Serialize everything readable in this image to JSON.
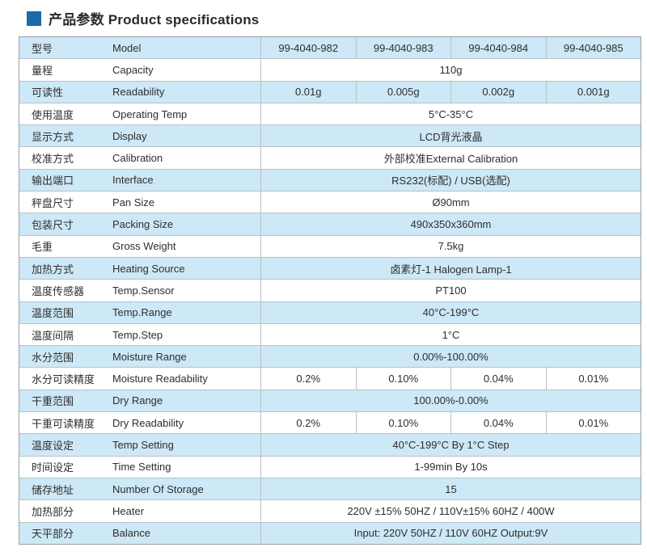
{
  "header": {
    "title": "产品参数 Product specifications",
    "bullet_color": "#1a6aa6"
  },
  "colors": {
    "row_blue": "#cde8f6",
    "row_white": "#ffffff",
    "border": "#b9c2c8",
    "outer_border": "#98a1a8",
    "accent": "#1a6aa6"
  },
  "table": {
    "models": [
      "99-4040-982",
      "99-4040-983",
      "99-4040-984",
      "99-4040-985"
    ],
    "rows": [
      {
        "zh": "型号",
        "en": "Model",
        "values": [
          "99-4040-982",
          "99-4040-983",
          "99-4040-984",
          "99-4040-985"
        ]
      },
      {
        "zh": "量程",
        "en": "Capacity",
        "value": "110g"
      },
      {
        "zh": "可读性",
        "en": "Readability",
        "values": [
          "0.01g",
          "0.005g",
          "0.002g",
          "0.001g"
        ]
      },
      {
        "zh": "使用温度",
        "en": "Operating Temp",
        "value": "5°C-35°C"
      },
      {
        "zh": "显示方式",
        "en": "Display",
        "value": "LCD背光液晶"
      },
      {
        "zh": "校准方式",
        "en": "Calibration",
        "value": "外部校准External Calibration"
      },
      {
        "zh": "输出端口",
        "en": "Interface",
        "value": "RS232(标配) / USB(选配)"
      },
      {
        "zh": "秤盘尺寸",
        "en": "Pan Size",
        "value": "Ø90mm"
      },
      {
        "zh": "包装尺寸",
        "en": "Packing Size",
        "value": "490x350x360mm"
      },
      {
        "zh": "毛重",
        "en": "Gross Weight",
        "value": "7.5kg"
      },
      {
        "zh": "加热方式",
        "en": "Heating Source",
        "value": "卤素灯-1 Halogen Lamp-1"
      },
      {
        "zh": "温度传感器",
        "en": "Temp.Sensor",
        "value": "PT100"
      },
      {
        "zh": "温度范围",
        "en": "Temp.Range",
        "value": "40°C-199°C"
      },
      {
        "zh": "温度间隔",
        "en": "Temp.Step",
        "value": "1°C"
      },
      {
        "zh": "水分范围",
        "en": "Moisture Range",
        "value": "0.00%-100.00%"
      },
      {
        "zh": "水分可读精度",
        "en": "Moisture Readability",
        "values": [
          "0.2%",
          "0.10%",
          "0.04%",
          "0.01%"
        ]
      },
      {
        "zh": "干重范围",
        "en": "Dry Range",
        "value": "100.00%-0.00%"
      },
      {
        "zh": "干重可读精度",
        "en": "Dry Readability",
        "values": [
          "0.2%",
          "0.10%",
          "0.04%",
          "0.01%"
        ]
      },
      {
        "zh": "温度设定",
        "en": "Temp Setting",
        "value": "40°C-199°C  By  1°C Step"
      },
      {
        "zh": "时间设定",
        "en": "Time Setting",
        "value": "1-99min  By  10s"
      },
      {
        "zh": "储存地址",
        "en": "Number Of Storage",
        "value": "15"
      },
      {
        "zh": "加热部分",
        "en": "Heater",
        "value": "220V ±15%  50HZ / 110V±15%  60HZ / 400W"
      },
      {
        "zh": "天平部分",
        "en": "Balance",
        "value": "Input: 220V  50HZ / 110V  60HZ   Output:9V"
      }
    ]
  }
}
